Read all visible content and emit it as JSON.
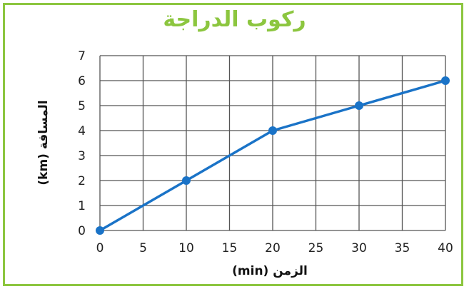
{
  "chart_data": {
    "type": "line",
    "title": "ركوب الدراجة",
    "xlabel": "(min) الزمن",
    "ylabel": "(km) المسافة",
    "xlim": [
      0,
      40
    ],
    "ylim": [
      0,
      7
    ],
    "x_ticks": [
      0,
      5,
      10,
      15,
      20,
      25,
      30,
      35,
      40
    ],
    "y_ticks": [
      0,
      1,
      2,
      3,
      4,
      5,
      6,
      7
    ],
    "grid": true,
    "series": [
      {
        "x": [
          0,
          10,
          20,
          30,
          40
        ],
        "y": [
          0,
          2,
          4,
          5,
          6
        ]
      }
    ],
    "colors": {
      "line": "#1a73c7",
      "grid": "#555555",
      "title": "#8cc63f",
      "border": "#8cc63f"
    }
  }
}
